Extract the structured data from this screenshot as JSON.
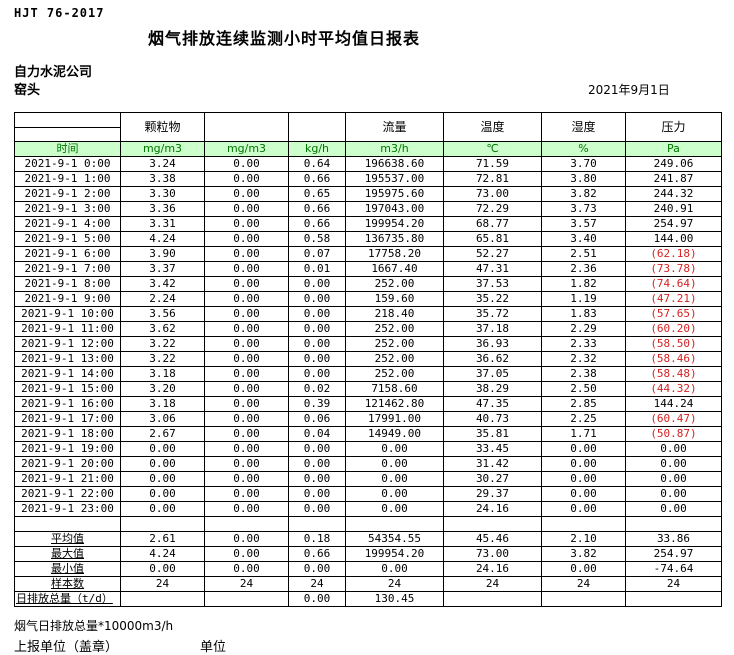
{
  "header": {
    "standard": "HJT  76-2017",
    "title": "烟气排放连续监测小时平均值日报表",
    "company": "自力水泥公司",
    "location": "窑头",
    "date": "2021年9月1日"
  },
  "table": {
    "column_groups": [
      "",
      "颗粒物",
      "",
      "",
      "流量",
      "温度",
      "湿度",
      "压力"
    ],
    "units": [
      "时间",
      "mg/m3",
      "mg/m3",
      "kg/h",
      "m3/h",
      "℃",
      "%",
      "Pa"
    ],
    "rows": [
      [
        "2021-9-1 0:00",
        "3.24",
        "0.00",
        "0.64",
        "196638.60",
        "71.59",
        "3.70",
        "249.06"
      ],
      [
        "2021-9-1 1:00",
        "3.38",
        "0.00",
        "0.66",
        "195537.00",
        "72.81",
        "3.80",
        "241.87"
      ],
      [
        "2021-9-1 2:00",
        "3.30",
        "0.00",
        "0.65",
        "195975.60",
        "73.00",
        "3.82",
        "244.32"
      ],
      [
        "2021-9-1 3:00",
        "3.36",
        "0.00",
        "0.66",
        "197043.00",
        "72.29",
        "3.73",
        "240.91"
      ],
      [
        "2021-9-1 4:00",
        "3.31",
        "0.00",
        "0.66",
        "199954.20",
        "68.77",
        "3.57",
        "254.97"
      ],
      [
        "2021-9-1 5:00",
        "4.24",
        "0.00",
        "0.58",
        "136735.80",
        "65.81",
        "3.40",
        "144.00"
      ],
      [
        "2021-9-1 6:00",
        "3.90",
        "0.00",
        "0.07",
        "17758.20",
        "52.27",
        "2.51",
        "(62.18)"
      ],
      [
        "2021-9-1 7:00",
        "3.37",
        "0.00",
        "0.01",
        "1667.40",
        "47.31",
        "2.36",
        "(73.78)"
      ],
      [
        "2021-9-1 8:00",
        "3.42",
        "0.00",
        "0.00",
        "252.00",
        "37.53",
        "1.82",
        "(74.64)"
      ],
      [
        "2021-9-1 9:00",
        "2.24",
        "0.00",
        "0.00",
        "159.60",
        "35.22",
        "1.19",
        "(47.21)"
      ],
      [
        "2021-9-1 10:00",
        "3.56",
        "0.00",
        "0.00",
        "218.40",
        "35.72",
        "1.83",
        "(57.65)"
      ],
      [
        "2021-9-1 11:00",
        "3.62",
        "0.00",
        "0.00",
        "252.00",
        "37.18",
        "2.29",
        "(60.20)"
      ],
      [
        "2021-9-1 12:00",
        "3.22",
        "0.00",
        "0.00",
        "252.00",
        "36.93",
        "2.33",
        "(58.50)"
      ],
      [
        "2021-9-1 13:00",
        "3.22",
        "0.00",
        "0.00",
        "252.00",
        "36.62",
        "2.32",
        "(58.46)"
      ],
      [
        "2021-9-1 14:00",
        "3.18",
        "0.00",
        "0.00",
        "252.00",
        "37.05",
        "2.38",
        "(58.48)"
      ],
      [
        "2021-9-1 15:00",
        "3.20",
        "0.00",
        "0.02",
        "7158.60",
        "38.29",
        "2.50",
        "(44.32)"
      ],
      [
        "2021-9-1 16:00",
        "3.18",
        "0.00",
        "0.39",
        "121462.80",
        "47.35",
        "2.85",
        "144.24"
      ],
      [
        "2021-9-1 17:00",
        "3.06",
        "0.00",
        "0.06",
        "17991.00",
        "40.73",
        "2.25",
        "(60.47)"
      ],
      [
        "2021-9-1 18:00",
        "2.67",
        "0.00",
        "0.04",
        "14949.00",
        "35.81",
        "1.71",
        "(50.87)"
      ],
      [
        "2021-9-1 19:00",
        "0.00",
        "0.00",
        "0.00",
        "0.00",
        "33.45",
        "0.00",
        "0.00"
      ],
      [
        "2021-9-1 20:00",
        "0.00",
        "0.00",
        "0.00",
        "0.00",
        "31.42",
        "0.00",
        "0.00"
      ],
      [
        "2021-9-1 21:00",
        "0.00",
        "0.00",
        "0.00",
        "0.00",
        "30.27",
        "0.00",
        "0.00"
      ],
      [
        "2021-9-1 22:00",
        "0.00",
        "0.00",
        "0.00",
        "0.00",
        "29.37",
        "0.00",
        "0.00"
      ],
      [
        "2021-9-1 23:00",
        "0.00",
        "0.00",
        "0.00",
        "0.00",
        "24.16",
        "0.00",
        "0.00"
      ]
    ],
    "summary": [
      {
        "label": "平均值",
        "values": [
          "2.61",
          "0.00",
          "0.18",
          "54354.55",
          "45.46",
          "2.10",
          "33.86"
        ]
      },
      {
        "label": "最大值",
        "values": [
          "4.24",
          "0.00",
          "0.66",
          "199954.20",
          "73.00",
          "3.82",
          "254.97"
        ]
      },
      {
        "label": "最小值",
        "values": [
          "0.00",
          "0.00",
          "0.00",
          "0.00",
          "24.16",
          "0.00",
          "-74.64"
        ]
      },
      {
        "label": "样本数",
        "values": [
          "24",
          "24",
          "24",
          "24",
          "24",
          "24",
          "24"
        ]
      },
      {
        "label": "日排放总量（t/d）",
        "values": [
          "",
          "",
          "0.00",
          "130.45",
          "",
          "",
          ""
        ]
      }
    ]
  },
  "footer": {
    "note": "烟气日排放总量*10000m3/h",
    "report_unit_label": "上报单位（盖章）",
    "unit_label": "单位"
  },
  "colors": {
    "header_row_bg": "#ccffcc",
    "header_row_text": "#007500",
    "negative_value": "#d42222"
  }
}
